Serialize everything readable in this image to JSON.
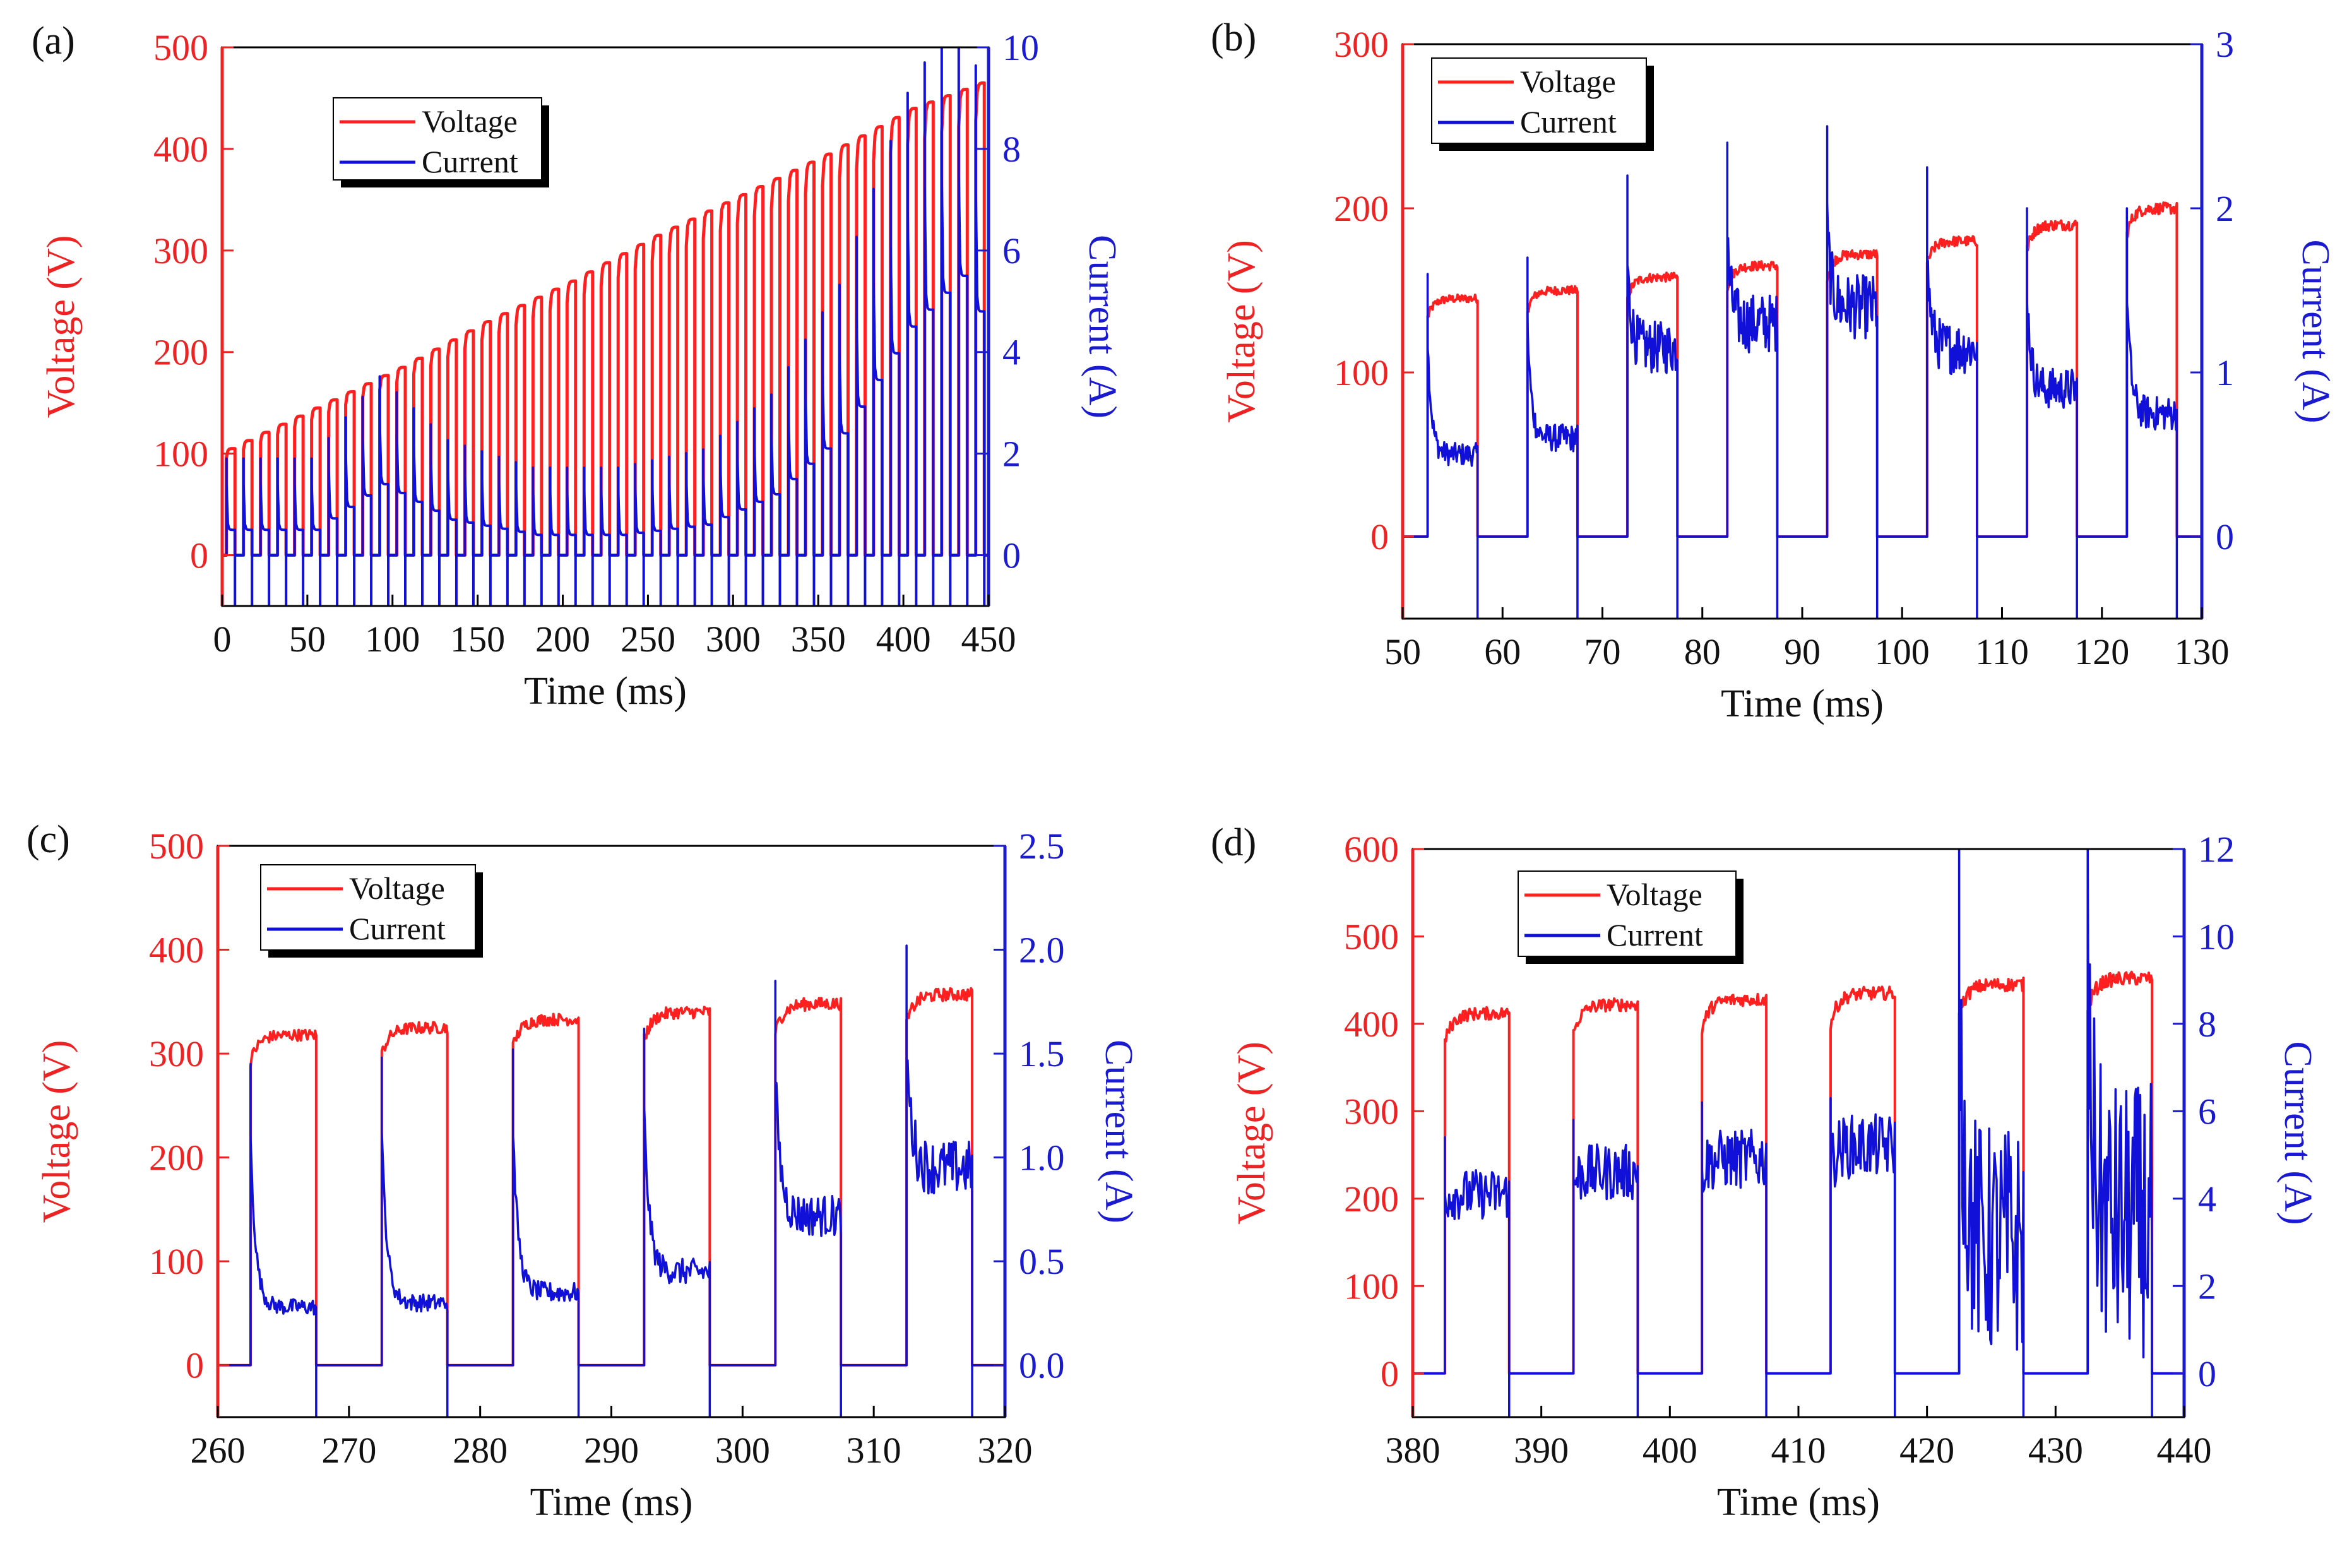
{
  "figure": {
    "colors": {
      "voltage": "#ff1f1f",
      "current": "#1010d8",
      "axis_left": "#ee2222",
      "axis_right": "#1a1ad0",
      "frame": "#000000"
    }
  },
  "chart_data": [
    {
      "panel_label": "(a)",
      "type": "line",
      "title": "",
      "xlabel": "Time (ms)",
      "ylabel_left": "Voltage (V)",
      "ylabel_right": "Current (A)",
      "xlim": [
        0,
        450
      ],
      "ylim_left": [
        -50,
        500
      ],
      "ylim_right": [
        -1,
        10
      ],
      "x_ticks": [
        "0",
        "50",
        "100",
        "150",
        "200",
        "250",
        "300",
        "350",
        "400",
        "450"
      ],
      "y_left_ticks": [
        "0",
        "100",
        "200",
        "300",
        "400",
        "500"
      ],
      "y_right_ticks": [
        "0",
        "2",
        "4",
        "6",
        "8",
        "10"
      ],
      "legend": [
        "Voltage",
        "Current"
      ],
      "legend_position": "top-left",
      "pulse_period_ms": 10,
      "on_duration_ms": 5,
      "x_first_pulse_ms": 2.5,
      "series": [
        {
          "name": "Voltage",
          "axis": "left",
          "x": [
            2.5,
            52.5,
            102.5,
            152.5,
            202.5,
            252.5,
            302.5,
            352.5,
            402.5,
            442.5
          ],
          "values": [
            105,
            145,
            185,
            230,
            270,
            315,
            355,
            395,
            440,
            465
          ]
        },
        {
          "name": "Current",
          "axis": "right",
          "x": [
            2.5,
            52.5,
            92.5,
            132.5,
            182.5,
            232.5,
            282.5,
            322.5,
            362.5,
            402.5,
            432.5,
            442.5
          ],
          "values": [
            0.5,
            0.5,
            1.4,
            0.7,
            0.4,
            0.4,
            0.6,
            1.2,
            2.4,
            4.5,
            5.5,
            4.8
          ]
        }
      ]
    },
    {
      "panel_label": "(b)",
      "type": "line",
      "title": "",
      "xlabel": "Time (ms)",
      "ylabel_left": "Voltage (V)",
      "ylabel_right": "Current (A)",
      "xlim": [
        50,
        130
      ],
      "ylim_left": [
        -50,
        300
      ],
      "ylim_right": [
        -0.5,
        3
      ],
      "x_ticks": [
        "50",
        "60",
        "70",
        "80",
        "90",
        "100",
        "110",
        "120",
        "130"
      ],
      "y_left_ticks": [
        "0",
        "100",
        "200",
        "300"
      ],
      "y_right_ticks": [
        "0",
        "1",
        "2",
        "3"
      ],
      "legend": [
        "Voltage",
        "Current"
      ],
      "legend_position": "top-left",
      "pulse_period_ms": 10,
      "on_duration_ms": 5,
      "pulse_on_x": [
        52.5,
        62.5,
        72.5,
        82.5,
        92.5,
        102.5,
        112.5,
        122.5
      ],
      "series": [
        {
          "name": "Voltage",
          "axis": "left",
          "plateau": [
            145,
            150,
            158,
            165,
            172,
            180,
            190,
            200
          ]
        },
        {
          "name": "Current",
          "axis": "right",
          "spike": [
            1.6,
            1.7,
            2.2,
            2.4,
            2.5,
            2.25,
            2.0,
            2.0
          ],
          "plateau": [
            0.5,
            0.6,
            1.15,
            1.3,
            1.4,
            1.15,
            0.9,
            0.75
          ]
        }
      ]
    },
    {
      "panel_label": "(c)",
      "type": "line",
      "title": "",
      "xlabel": "Time (ms)",
      "ylabel_left": "Voltage (V)",
      "ylabel_right": "Current (A)",
      "xlim": [
        260,
        320
      ],
      "ylim_left": [
        -50,
        500
      ],
      "ylim_right": [
        -0.25,
        2.5
      ],
      "x_ticks": [
        "260",
        "270",
        "280",
        "290",
        "300",
        "310",
        "320"
      ],
      "y_left_ticks": [
        "0",
        "100",
        "200",
        "300",
        "400",
        "500"
      ],
      "y_right_ticks": [
        "0.0",
        "0.5",
        "1.0",
        "1.5",
        "2.0",
        "2.5"
      ],
      "legend": [
        "Voltage",
        "Current"
      ],
      "legend_position": "top-left",
      "pulse_period_ms": 10,
      "on_duration_ms": 5,
      "pulse_on_x": [
        262.5,
        272.5,
        282.5,
        292.5,
        302.5,
        312.5
      ],
      "series": [
        {
          "name": "Voltage",
          "axis": "left",
          "plateau": [
            318,
            325,
            333,
            340,
            348,
            357
          ]
        },
        {
          "name": "Current",
          "axis": "right",
          "spike": [
            1.45,
            1.48,
            1.52,
            1.62,
            1.85,
            2.02
          ],
          "plateau": [
            0.28,
            0.3,
            0.35,
            0.45,
            0.72,
            0.95
          ]
        }
      ]
    },
    {
      "panel_label": "(d)",
      "type": "line",
      "title": "",
      "xlabel": "Time (ms)",
      "ylabel_left": "Voltage (V)",
      "ylabel_right": "Current (A)",
      "xlim": [
        380,
        440
      ],
      "ylim_left": [
        -50,
        600
      ],
      "ylim_right": [
        -1,
        12
      ],
      "x_ticks": [
        "380",
        "390",
        "400",
        "410",
        "420",
        "430",
        "440"
      ],
      "y_left_ticks": [
        "0",
        "100",
        "200",
        "300",
        "400",
        "500",
        "600"
      ],
      "y_right_ticks": [
        "0",
        "2",
        "4",
        "6",
        "8",
        "10",
        "12"
      ],
      "legend": [
        "Voltage",
        "Current"
      ],
      "legend_position": "top-left",
      "pulse_period_ms": 10,
      "on_duration_ms": 5,
      "pulse_on_x": [
        382.5,
        392.5,
        402.5,
        412.5,
        422.5,
        432.5
      ],
      "series": [
        {
          "name": "Voltage",
          "axis": "left",
          "plateau": [
            412,
            422,
            428,
            435,
            445,
            452
          ]
        },
        {
          "name": "Current",
          "axis": "right",
          "spike": [
            5.4,
            5.8,
            6.2,
            6.3,
            12,
            12
          ],
          "plateau": [
            4.1,
            4.6,
            4.9,
            5.2,
            3.0,
            3.5
          ]
        }
      ]
    }
  ]
}
